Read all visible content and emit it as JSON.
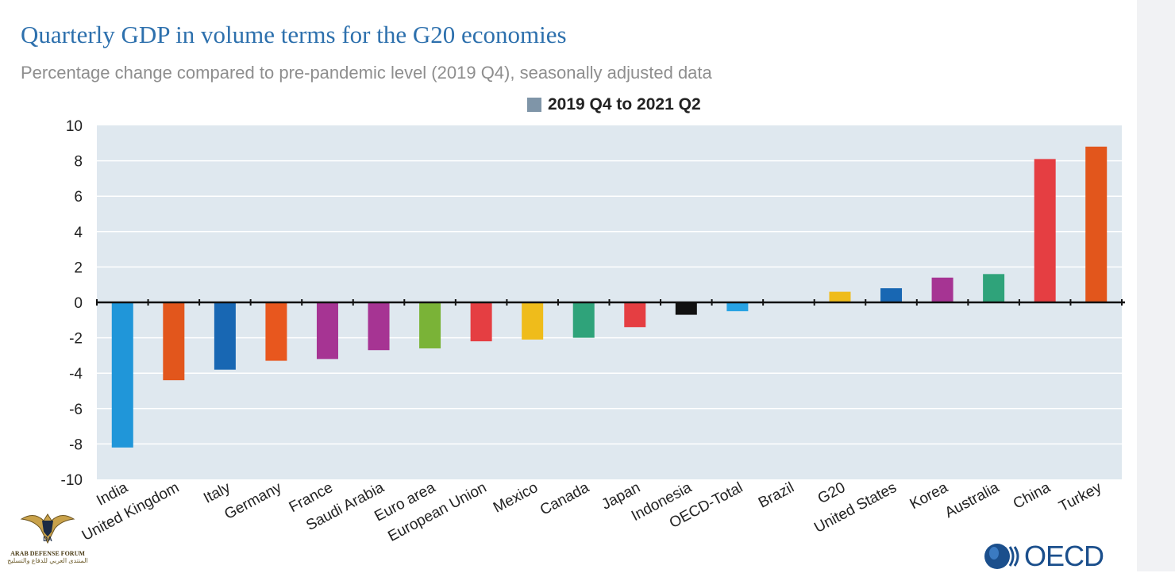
{
  "title": "Quarterly GDP in volume terms for the G20 economies",
  "subtitle": "Percentage change compared to pre-pandemic level (2019 Q4), seasonally adjusted data",
  "logo_text": "OECD",
  "watermark": {
    "line1": "ARAB DEFENSE FORUM",
    "line2": "المنتدى العربي للدفاع والتسليح"
  },
  "chart_data": {
    "type": "bar",
    "title": "Quarterly GDP in volume terms for the G20 economies",
    "subtitle": "Percentage change compared to pre-pandemic level (2019 Q4), seasonally adjusted data",
    "legend": [
      "2019 Q4 to 2021 Q2"
    ],
    "legend_position": "top-center",
    "ylim": [
      -10,
      10
    ],
    "yticks": [
      10,
      8,
      6,
      4,
      2,
      0,
      -2,
      -4,
      -6,
      -8,
      -10
    ],
    "grid": true,
    "categories": [
      "India",
      "United Kingdom",
      "Italy",
      "Germany",
      "France",
      "Saudi Arabia",
      "Euro area",
      "European Union",
      "Mexico",
      "Canada",
      "Japan",
      "Indonesia",
      "OECD-Total",
      "Brazil",
      "G20",
      "United States",
      "Korea",
      "Australia",
      "China",
      "Turkey"
    ],
    "series": [
      {
        "name": "2019 Q4 to 2021 Q2",
        "values": [
          -8.2,
          -4.4,
          -3.8,
          -3.3,
          -3.2,
          -2.7,
          -2.6,
          -2.2,
          -2.1,
          -2.0,
          -1.4,
          -0.7,
          -0.5,
          0.0,
          0.6,
          0.8,
          1.4,
          1.6,
          8.1,
          8.8
        ],
        "colors": [
          "#2096d9",
          "#e2561c",
          "#1867b3",
          "#e8571e",
          "#a63493",
          "#a63493",
          "#7ab337",
          "#e53e42",
          "#efbc1b",
          "#2fa37a",
          "#e53e42",
          "#111111",
          "#27a2e3",
          "#cccccc",
          "#efbc1b",
          "#1867b3",
          "#a63493",
          "#2fa37a",
          "#e53e42",
          "#e2561c"
        ]
      }
    ]
  }
}
